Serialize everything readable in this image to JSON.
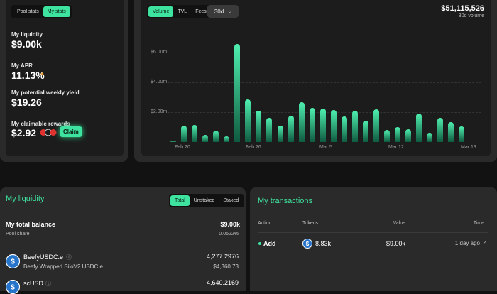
{
  "pool_tabs": [
    "Pool stats",
    "My stats"
  ],
  "my_liquidity_label": "My liquidity",
  "my_liquidity_value": "$9.00k",
  "my_apr_label": "My APR",
  "my_apr_value": "11.13%",
  "weekly_yield_label": "My potential weekly yield",
  "weekly_yield_value": "$19.26",
  "claimable_label": "My claimable rewards",
  "claimable_value": "$2.92",
  "claim_label": "Claim",
  "chart_tabs": [
    "Volume",
    "TVL",
    "Fees"
  ],
  "period_select": "30d",
  "volume_total": "$51,115,526",
  "volume_caption": "30d volume",
  "chart_data": {
    "type": "bar",
    "y_ticks": [
      "$6.00m",
      "$4.00m",
      "$2.00m"
    ],
    "x_ticks": [
      "Feb 20",
      "Feb 26",
      "Mar 5",
      "Mar 12",
      "Mar 19"
    ],
    "ylim": [
      0,
      7.2
    ],
    "values": [
      0.1,
      1.1,
      1.15,
      0.5,
      0.75,
      0.4,
      6.6,
      2.85,
      2.1,
      1.6,
      1.1,
      1.75,
      2.65,
      2.3,
      2.25,
      2.15,
      1.7,
      2.1,
      1.45,
      2.2,
      0.8,
      1.0,
      0.85,
      1.9,
      0.6,
      1.6,
      1.35,
      1.05
    ]
  },
  "liquidity_title": "My liquidity",
  "liquidity_tabs": [
    "Total",
    "Unstaked",
    "Staked"
  ],
  "total_balance_label": "My total balance",
  "total_balance_value": "$9.00k",
  "pool_share_label": "Pool share",
  "pool_share_value": "0.0522%",
  "token1_name": "BeefyUSDC.e",
  "token1_desc": "Beefy Wrapped SiloV2 USDC.e",
  "token1_amount": "4,277.2976",
  "token1_usd": "$4,360.73",
  "token2_name": "scUSD",
  "token2_amount": "4,640.2169",
  "transactions_title": "My transactions",
  "tx_headers": [
    "Action",
    "Tokens",
    "Value",
    "Time"
  ],
  "tx_row": {
    "action": "Add",
    "tokens": "8.83k",
    "value": "$9.00k",
    "time": "1 day ago"
  }
}
